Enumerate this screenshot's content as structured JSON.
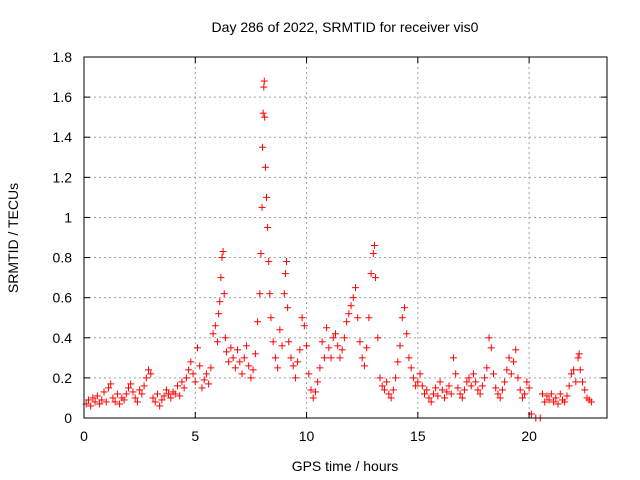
{
  "chart_data": {
    "type": "scatter",
    "title": "Day 286 of 2022, SRMTID for receiver vis0",
    "xlabel": "GPS time / hours",
    "ylabel": "SRMTID / TECUs",
    "xlim": [
      0,
      23.5
    ],
    "ylim": [
      0,
      1.8
    ],
    "xticks": [
      0,
      5,
      10,
      15,
      20
    ],
    "yticks": [
      0,
      0.2,
      0.4,
      0.6,
      0.8,
      1,
      1.2,
      1.4,
      1.6,
      1.8
    ],
    "ytick_labels": [
      "0",
      "0.2",
      "0.4",
      "0.6",
      "0.8",
      "1",
      "1.2",
      "1.4",
      "1.6",
      "1.8"
    ],
    "grid": true,
    "marker": "+",
    "color": "#ff0000",
    "series": [
      {
        "name": "vis0",
        "points": [
          [
            0.1,
            0.07
          ],
          [
            0.2,
            0.09
          ],
          [
            0.3,
            0.06
          ],
          [
            0.4,
            0.1
          ],
          [
            0.5,
            0.08
          ],
          [
            0.6,
            0.11
          ],
          [
            0.7,
            0.07
          ],
          [
            0.8,
            0.09
          ],
          [
            0.9,
            0.13
          ],
          [
            1.0,
            0.08
          ],
          [
            1.1,
            0.15
          ],
          [
            1.2,
            0.17
          ],
          [
            1.3,
            0.1
          ],
          [
            1.4,
            0.08
          ],
          [
            1.5,
            0.12
          ],
          [
            1.6,
            0.07
          ],
          [
            1.7,
            0.1
          ],
          [
            1.8,
            0.09
          ],
          [
            1.9,
            0.12
          ],
          [
            2.0,
            0.15
          ],
          [
            2.1,
            0.17
          ],
          [
            2.2,
            0.13
          ],
          [
            2.3,
            0.1
          ],
          [
            2.4,
            0.08
          ],
          [
            2.5,
            0.14
          ],
          [
            2.6,
            0.12
          ],
          [
            2.7,
            0.16
          ],
          [
            2.8,
            0.2
          ],
          [
            2.9,
            0.24
          ],
          [
            3.0,
            0.22
          ],
          [
            3.1,
            0.1
          ],
          [
            3.2,
            0.08
          ],
          [
            3.3,
            0.12
          ],
          [
            3.4,
            0.06
          ],
          [
            3.5,
            0.09
          ],
          [
            3.6,
            0.11
          ],
          [
            3.7,
            0.14
          ],
          [
            3.8,
            0.12
          ],
          [
            3.9,
            0.1
          ],
          [
            4.0,
            0.13
          ],
          [
            4.1,
            0.12
          ],
          [
            4.2,
            0.16
          ],
          [
            4.3,
            0.11
          ],
          [
            4.4,
            0.18
          ],
          [
            4.5,
            0.15
          ],
          [
            4.6,
            0.2
          ],
          [
            4.7,
            0.24
          ],
          [
            4.8,
            0.28
          ],
          [
            4.9,
            0.22
          ],
          [
            5.0,
            0.18
          ],
          [
            5.1,
            0.35
          ],
          [
            5.2,
            0.26
          ],
          [
            5.3,
            0.15
          ],
          [
            5.4,
            0.19
          ],
          [
            5.5,
            0.22
          ],
          [
            5.6,
            0.17
          ],
          [
            5.7,
            0.25
          ],
          [
            5.8,
            0.42
          ],
          [
            5.9,
            0.46
          ],
          [
            6.0,
            0.38
          ],
          [
            6.05,
            0.52
          ],
          [
            6.1,
            0.58
          ],
          [
            6.15,
            0.7
          ],
          [
            6.2,
            0.8
          ],
          [
            6.25,
            0.83
          ],
          [
            6.3,
            0.62
          ],
          [
            6.35,
            0.4
          ],
          [
            6.4,
            0.33
          ],
          [
            6.5,
            0.28
          ],
          [
            6.6,
            0.35
          ],
          [
            6.7,
            0.3
          ],
          [
            6.8,
            0.25
          ],
          [
            6.9,
            0.34
          ],
          [
            7.0,
            0.28
          ],
          [
            7.1,
            0.22
          ],
          [
            7.2,
            0.3
          ],
          [
            7.3,
            0.36
          ],
          [
            7.4,
            0.26
          ],
          [
            7.5,
            0.2
          ],
          [
            7.6,
            0.24
          ],
          [
            7.7,
            0.32
          ],
          [
            7.8,
            0.48
          ],
          [
            7.9,
            0.62
          ],
          [
            7.95,
            0.82
          ],
          [
            8.0,
            1.05
          ],
          [
            8.02,
            1.35
          ],
          [
            8.05,
            1.52
          ],
          [
            8.08,
            1.65
          ],
          [
            8.1,
            1.68
          ],
          [
            8.12,
            1.5
          ],
          [
            8.15,
            1.25
          ],
          [
            8.2,
            1.1
          ],
          [
            8.25,
            0.95
          ],
          [
            8.3,
            0.78
          ],
          [
            8.35,
            0.62
          ],
          [
            8.4,
            0.5
          ],
          [
            8.5,
            0.38
          ],
          [
            8.6,
            0.3
          ],
          [
            8.7,
            0.25
          ],
          [
            8.8,
            0.44
          ],
          [
            8.9,
            0.36
          ],
          [
            9.0,
            0.62
          ],
          [
            9.05,
            0.72
          ],
          [
            9.1,
            0.78
          ],
          [
            9.15,
            0.55
          ],
          [
            9.2,
            0.38
          ],
          [
            9.3,
            0.3
          ],
          [
            9.4,
            0.26
          ],
          [
            9.5,
            0.2
          ],
          [
            9.6,
            0.28
          ],
          [
            9.7,
            0.34
          ],
          [
            9.8,
            0.5
          ],
          [
            9.9,
            0.46
          ],
          [
            10.0,
            0.36
          ],
          [
            10.1,
            0.22
          ],
          [
            10.2,
            0.14
          ],
          [
            10.3,
            0.1
          ],
          [
            10.4,
            0.13
          ],
          [
            10.5,
            0.18
          ],
          [
            10.6,
            0.25
          ],
          [
            10.7,
            0.38
          ],
          [
            10.8,
            0.3
          ],
          [
            10.9,
            0.45
          ],
          [
            11.0,
            0.35
          ],
          [
            11.1,
            0.3
          ],
          [
            11.2,
            0.4
          ],
          [
            11.3,
            0.42
          ],
          [
            11.4,
            0.36
          ],
          [
            11.5,
            0.3
          ],
          [
            11.6,
            0.34
          ],
          [
            11.7,
            0.4
          ],
          [
            11.8,
            0.48
          ],
          [
            11.9,
            0.52
          ],
          [
            12.0,
            0.56
          ],
          [
            12.1,
            0.6
          ],
          [
            12.2,
            0.65
          ],
          [
            12.3,
            0.5
          ],
          [
            12.4,
            0.38
          ],
          [
            12.5,
            0.3
          ],
          [
            12.6,
            0.26
          ],
          [
            12.7,
            0.35
          ],
          [
            12.8,
            0.5
          ],
          [
            12.9,
            0.72
          ],
          [
            13.0,
            0.82
          ],
          [
            13.05,
            0.86
          ],
          [
            13.1,
            0.7
          ],
          [
            13.2,
            0.4
          ],
          [
            13.3,
            0.2
          ],
          [
            13.4,
            0.16
          ],
          [
            13.5,
            0.14
          ],
          [
            13.6,
            0.18
          ],
          [
            13.7,
            0.12
          ],
          [
            13.8,
            0.1
          ],
          [
            13.9,
            0.14
          ],
          [
            14.0,
            0.2
          ],
          [
            14.1,
            0.28
          ],
          [
            14.2,
            0.36
          ],
          [
            14.3,
            0.5
          ],
          [
            14.4,
            0.55
          ],
          [
            14.5,
            0.42
          ],
          [
            14.6,
            0.3
          ],
          [
            14.7,
            0.25
          ],
          [
            14.8,
            0.2
          ],
          [
            14.9,
            0.16
          ],
          [
            15.0,
            0.18
          ],
          [
            15.1,
            0.22
          ],
          [
            15.2,
            0.16
          ],
          [
            15.3,
            0.12
          ],
          [
            15.4,
            0.14
          ],
          [
            15.5,
            0.1
          ],
          [
            15.6,
            0.08
          ],
          [
            15.7,
            0.12
          ],
          [
            15.8,
            0.15
          ],
          [
            15.9,
            0.11
          ],
          [
            16.0,
            0.18
          ],
          [
            16.1,
            0.14
          ],
          [
            16.2,
            0.1
          ],
          [
            16.3,
            0.13
          ],
          [
            16.4,
            0.16
          ],
          [
            16.5,
            0.12
          ],
          [
            16.6,
            0.3
          ],
          [
            16.7,
            0.22
          ],
          [
            16.8,
            0.15
          ],
          [
            16.9,
            0.12
          ],
          [
            17.0,
            0.1
          ],
          [
            17.1,
            0.14
          ],
          [
            17.2,
            0.18
          ],
          [
            17.3,
            0.2
          ],
          [
            17.4,
            0.16
          ],
          [
            17.5,
            0.22
          ],
          [
            17.6,
            0.18
          ],
          [
            17.7,
            0.14
          ],
          [
            17.8,
            0.12
          ],
          [
            17.9,
            0.16
          ],
          [
            18.0,
            0.2
          ],
          [
            18.1,
            0.25
          ],
          [
            18.2,
            0.4
          ],
          [
            18.3,
            0.35
          ],
          [
            18.4,
            0.22
          ],
          [
            18.5,
            0.15
          ],
          [
            18.6,
            0.12
          ],
          [
            18.7,
            0.1
          ],
          [
            18.8,
            0.14
          ],
          [
            18.9,
            0.18
          ],
          [
            19.0,
            0.24
          ],
          [
            19.1,
            0.3
          ],
          [
            19.2,
            0.22
          ],
          [
            19.3,
            0.28
          ],
          [
            19.4,
            0.34
          ],
          [
            19.5,
            0.2
          ],
          [
            19.6,
            0.14
          ],
          [
            19.7,
            0.1
          ],
          [
            19.8,
            0.12
          ],
          [
            19.9,
            0.18
          ],
          [
            20.0,
            0.15
          ],
          [
            20.1,
            0.02
          ],
          [
            20.3,
            0.0
          ],
          [
            20.5,
            0.0
          ],
          [
            20.6,
            0.12
          ],
          [
            20.7,
            0.08
          ],
          [
            20.8,
            0.11
          ],
          [
            20.9,
            0.09
          ],
          [
            21.0,
            0.12
          ],
          [
            21.1,
            0.08
          ],
          [
            21.2,
            0.1
          ],
          [
            21.3,
            0.07
          ],
          [
            21.4,
            0.12
          ],
          [
            21.5,
            0.09
          ],
          [
            21.6,
            0.08
          ],
          [
            21.7,
            0.11
          ],
          [
            21.8,
            0.16
          ],
          [
            21.9,
            0.22
          ],
          [
            22.0,
            0.24
          ],
          [
            22.1,
            0.18
          ],
          [
            22.2,
            0.3
          ],
          [
            22.25,
            0.32
          ],
          [
            22.3,
            0.24
          ],
          [
            22.4,
            0.18
          ],
          [
            22.5,
            0.14
          ],
          [
            22.6,
            0.1
          ],
          [
            22.7,
            0.09
          ],
          [
            22.8,
            0.08
          ]
        ]
      }
    ]
  }
}
